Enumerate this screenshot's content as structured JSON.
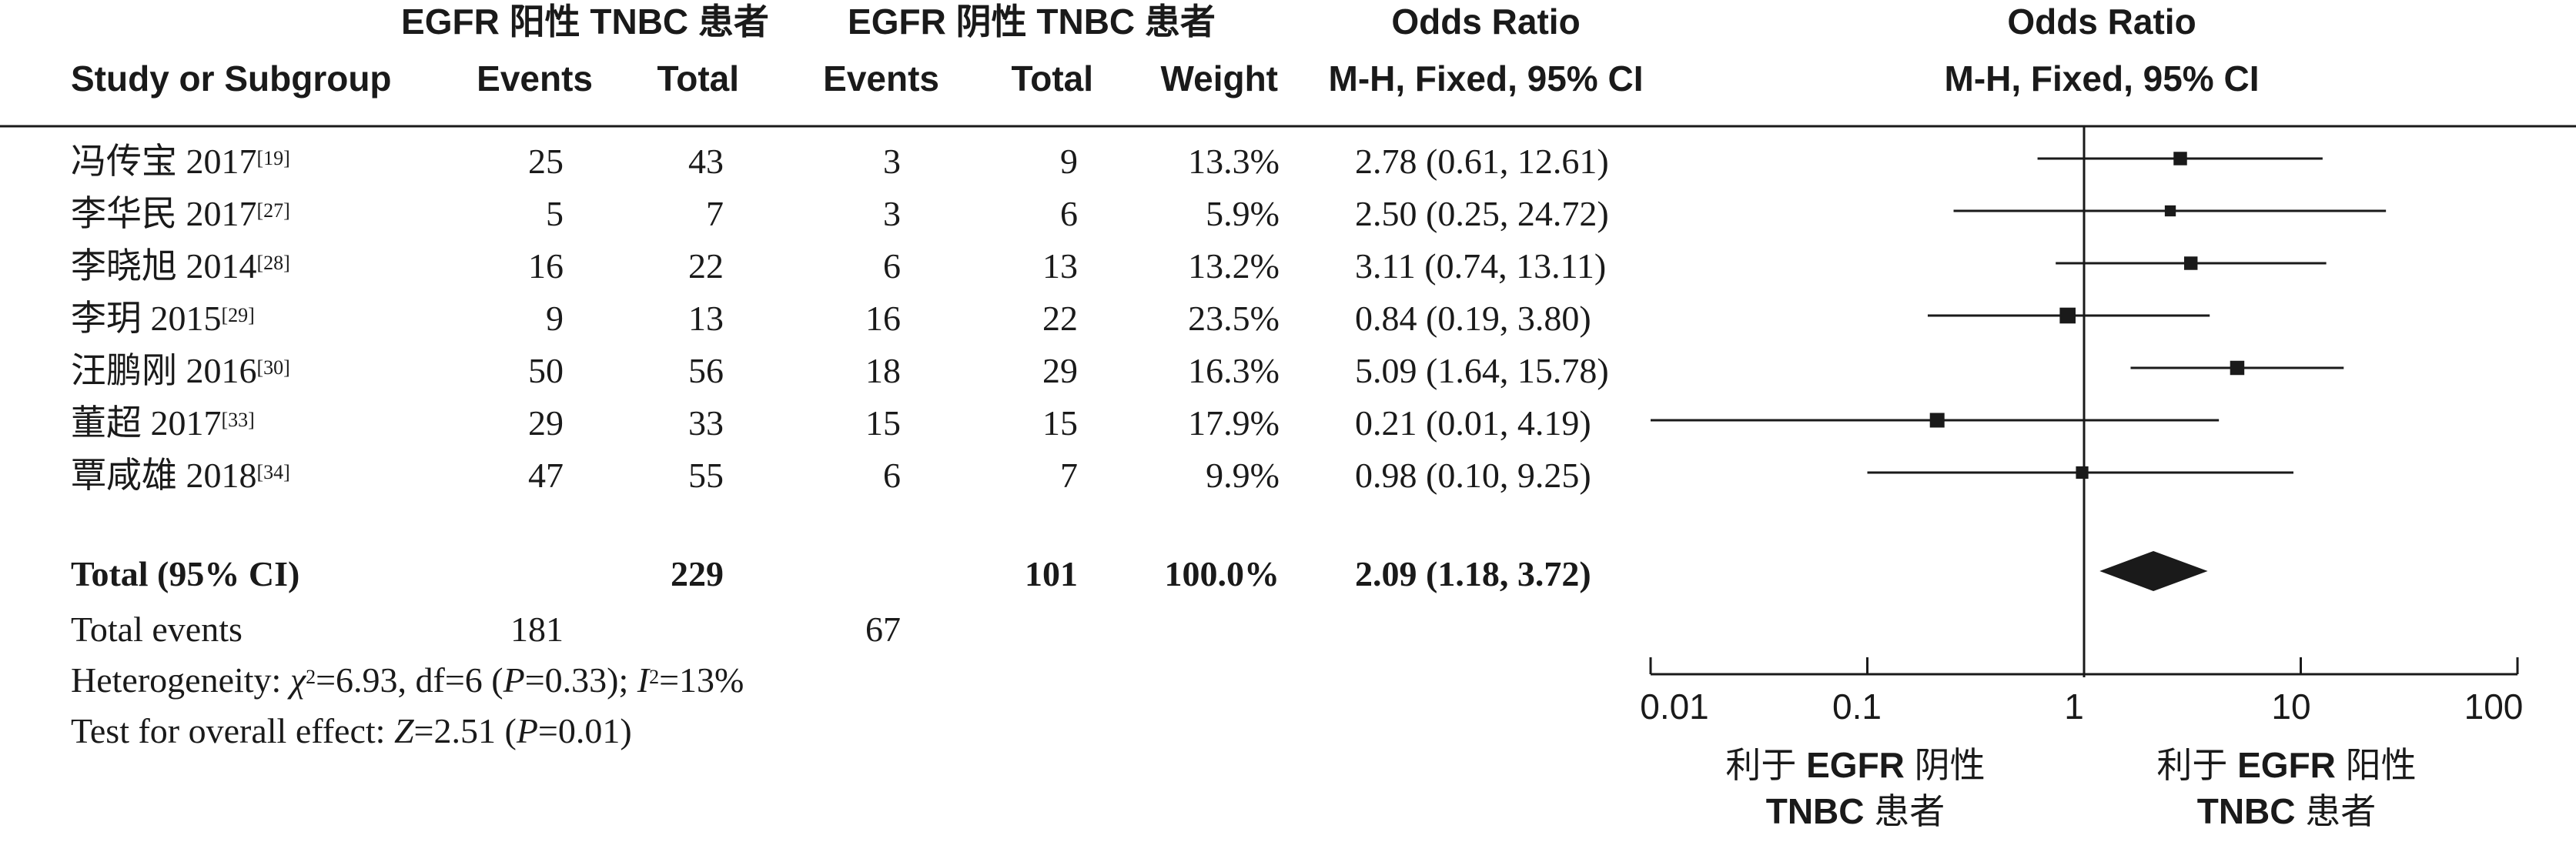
{
  "headers": {
    "group1": "EGFR 阳性 TNBC 患者",
    "group2": "EGFR 阴性 TNBC 患者",
    "or_col_title": "Odds Ratio",
    "or_col_sub": "M-H, Fixed, 95% CI",
    "plot_title": "Odds Ratio",
    "plot_sub": "M-H, Fixed, 95% CI",
    "study": "Study or Subgroup",
    "events1": "Events",
    "total1": "Total",
    "events2": "Events",
    "total2": "Total",
    "weight": "Weight"
  },
  "studies": [
    {
      "name": "冯传宝 2017",
      "ref": "[19]",
      "events1": "25",
      "total1": "43",
      "events2": "3",
      "total2": "9",
      "weight": "13.3%",
      "ci_text": "2.78 (0.61, 12.61)"
    },
    {
      "name": "李华民 2017",
      "ref": "[27]",
      "events1": "5",
      "total1": "7",
      "events2": "3",
      "total2": "6",
      "weight": "5.9%",
      "ci_text": "2.50 (0.25, 24.72)"
    },
    {
      "name": "李晓旭 2014",
      "ref": "[28]",
      "events1": "16",
      "total1": "22",
      "events2": "6",
      "total2": "13",
      "weight": "13.2%",
      "ci_text": "3.11 (0.74, 13.11)"
    },
    {
      "name": "李玥 2015",
      "ref": "[29]",
      "events1": "9",
      "total1": "13",
      "events2": "16",
      "total2": "22",
      "weight": "23.5%",
      "ci_text": "0.84 (0.19, 3.80)"
    },
    {
      "name": "汪鹏刚 2016",
      "ref": "[30]",
      "events1": "50",
      "total1": "56",
      "events2": "18",
      "total2": "29",
      "weight": "16.3%",
      "ci_text": "5.09 (1.64, 15.78)"
    },
    {
      "name": "董超 2017",
      "ref": "[33]",
      "events1": "29",
      "total1": "33",
      "events2": "15",
      "total2": "15",
      "weight": "17.9%",
      "ci_text": "0.21 (0.01, 4.19)"
    },
    {
      "name": "覃咸雄 2018",
      "ref": "[34]",
      "events1": "47",
      "total1": "55",
      "events2": "6",
      "total2": "7",
      "weight": "9.9%",
      "ci_text": "0.98 (0.10, 9.25)"
    }
  ],
  "total": {
    "label": "Total (95% CI)",
    "total1": "229",
    "total2": "101",
    "weight": "100.0%",
    "ci_text": "2.09 (1.18, 3.72)"
  },
  "total_events": {
    "label": "Total events",
    "events1": "181",
    "events2": "67"
  },
  "heterogeneity": {
    "prefix": "Heterogeneity: ",
    "chi": "χ",
    "chi_sup": "2",
    "chi_value": "=6.93, df=6 (",
    "p": "P",
    "p_value": "=0.33); ",
    "i": "I",
    "i_sup": "2",
    "i_value": "=13%"
  },
  "overall_effect": {
    "prefix": "Test for overall effect: ",
    "z": "Z",
    "z_value": "=2.51 (",
    "p": "P",
    "p_value": "=0.01)"
  },
  "axis": {
    "ticks": [
      "0.01",
      "0.1",
      "1",
      "10",
      "100"
    ]
  },
  "favours": {
    "left_line1_a": "利于 ",
    "left_line1_b": "EGFR",
    "left_line1_c": " 阴性",
    "left_line2_b": "TNBC",
    "left_line2_c": " 患者",
    "right_line1_a": "利于 ",
    "right_line1_b": "EGFR",
    "right_line1_c": " 阳性",
    "right_line2_b": "TNBC",
    "right_line2_c": " 患者"
  },
  "chart_data": {
    "type": "forest",
    "x_scale": "log",
    "xlim": [
      0.01,
      100
    ],
    "null_line": 1,
    "studies": [
      {
        "or": 2.78,
        "lo": 0.61,
        "hi": 12.61,
        "weight": 13.3
      },
      {
        "or": 2.5,
        "lo": 0.25,
        "hi": 24.72,
        "weight": 5.9
      },
      {
        "or": 3.11,
        "lo": 0.74,
        "hi": 13.11,
        "weight": 13.2
      },
      {
        "or": 0.84,
        "lo": 0.19,
        "hi": 3.8,
        "weight": 23.5
      },
      {
        "or": 5.09,
        "lo": 1.64,
        "hi": 15.78,
        "weight": 16.3
      },
      {
        "or": 0.21,
        "lo": 0.01,
        "hi": 4.19,
        "weight": 17.9
      },
      {
        "or": 0.98,
        "lo": 0.1,
        "hi": 9.25,
        "weight": 9.9
      }
    ],
    "pooled": {
      "or": 2.09,
      "lo": 1.18,
      "hi": 3.72
    }
  },
  "colors": {
    "ink": "#1a1a1a"
  }
}
